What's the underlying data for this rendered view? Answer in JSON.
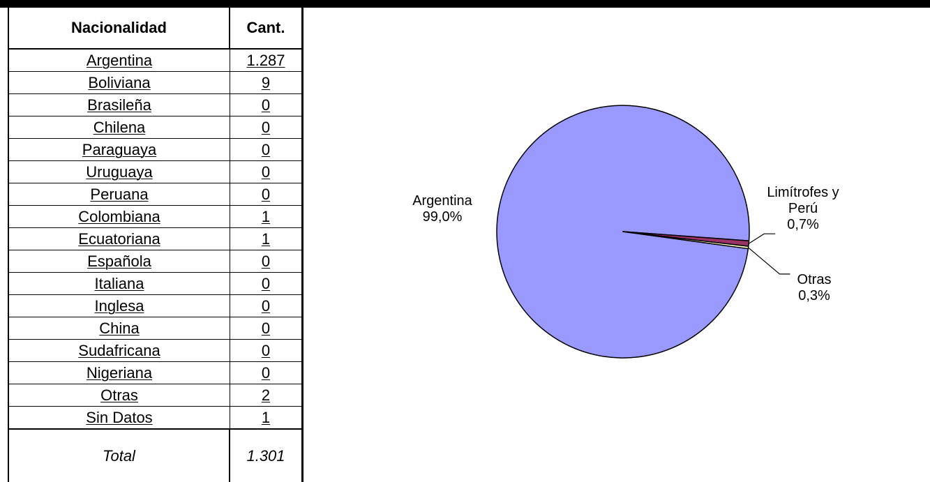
{
  "table": {
    "headers": [
      "Nacionalidad",
      "Cant."
    ],
    "rows": [
      {
        "name": "Argentina",
        "value": "1.287"
      },
      {
        "name": "Boliviana",
        "value": "9"
      },
      {
        "name": "Brasileña",
        "value": "0"
      },
      {
        "name": "Chilena",
        "value": "0"
      },
      {
        "name": "Paraguaya",
        "value": "0"
      },
      {
        "name": "Uruguaya",
        "value": "0"
      },
      {
        "name": "Peruana",
        "value": "0"
      },
      {
        "name": "Colombiana",
        "value": "1"
      },
      {
        "name": "Ecuatoriana",
        "value": "1"
      },
      {
        "name": "Española",
        "value": "0"
      },
      {
        "name": "Italiana",
        "value": "0"
      },
      {
        "name": "Inglesa",
        "value": "0"
      },
      {
        "name": "China",
        "value": "0"
      },
      {
        "name": "Sudafricana",
        "value": "0"
      },
      {
        "name": "Nigeriana",
        "value": "0"
      },
      {
        "name": "Otras",
        "value": "2"
      },
      {
        "name": "Sin Datos",
        "value": "1"
      }
    ],
    "total": {
      "name": "Total",
      "value": "1.301"
    }
  },
  "chart_data": {
    "type": "pie",
    "slices": [
      {
        "label_lines": [
          "Argentina",
          "99,0%"
        ],
        "value": 99.0,
        "color": "#9999ff"
      },
      {
        "label_lines": [
          "Limítrofes y",
          "Perú",
          "0,7%"
        ],
        "value": 0.7,
        "color": "#993366"
      },
      {
        "label_lines": [
          "Otras",
          "0,3%"
        ],
        "value": 0.3,
        "color": "#ffffcc"
      }
    ],
    "legend": "none"
  }
}
